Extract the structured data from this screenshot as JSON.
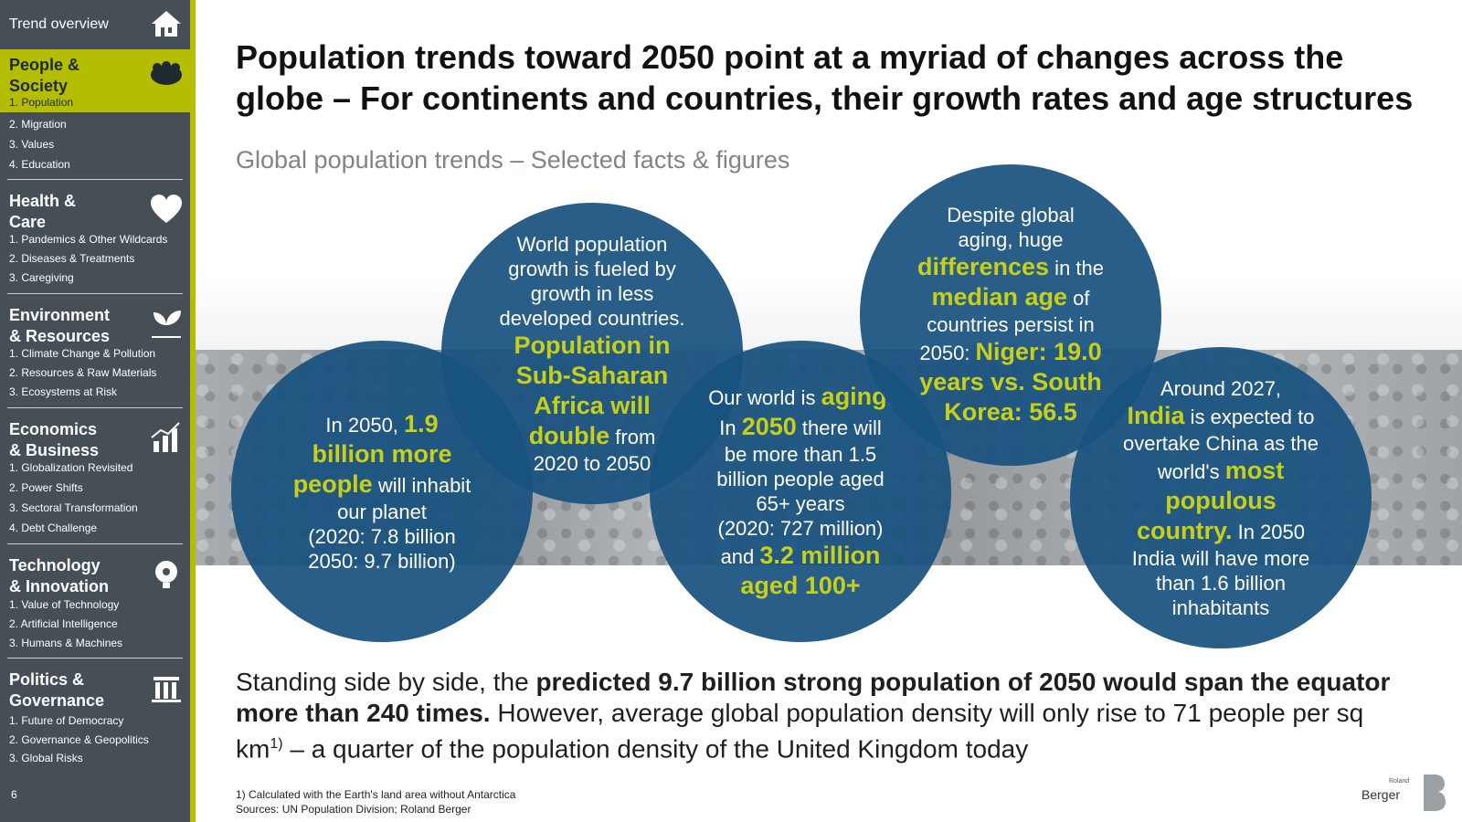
{
  "sidebar": {
    "trend_overview": "Trend overview",
    "page_number": "6",
    "sections": [
      {
        "title_l1": "People &",
        "title_l2": "Society",
        "items": [
          "1. Population",
          "2. Migration",
          "3. Values",
          "4. Education"
        ]
      },
      {
        "title_l1": "Health &",
        "title_l2": "Care",
        "items": [
          "1. Pandemics & Other Wildcards",
          "2. Diseases & Treatments",
          "3. Caregiving"
        ]
      },
      {
        "title_l1": "Environment",
        "title_l2": "& Resources",
        "items": [
          "1. Climate Change & Pollution",
          "2. Resources & Raw Materials",
          "3. Ecosystems at Risk"
        ]
      },
      {
        "title_l1": "Economics",
        "title_l2": "& Business",
        "items": [
          "1. Globalization Revisited",
          "2. Power Shifts",
          "3. Sectoral Transformation",
          "4. Debt Challenge"
        ]
      },
      {
        "title_l1": "Technology",
        "title_l2": "& Innovation",
        "items": [
          "1. Value of Technology",
          "2. Artificial Intelligence",
          "3. Humans & Machines"
        ]
      },
      {
        "title_l1": "Politics &",
        "title_l2": "Governance",
        "items": [
          "1. Future of Democracy",
          "2. Governance & Geopolitics",
          "3. Global Risks"
        ]
      }
    ]
  },
  "main": {
    "title_l1": "Population trends toward 2050 point at a myriad of changes across the",
    "title_l2": "globe – For continents and countries, their growth rates and age structures",
    "subtitle": "Global population trends – Selected facts & figures"
  },
  "circles": {
    "c1": {
      "t1": "In 2050, ",
      "h1": "1.9",
      "h2": "billion more",
      "h3": "people",
      "t2": " will inhabit",
      "t3": "our planet",
      "t4": "(2020: 7.8 billion",
      "t5": "2050: 9.7 billion)"
    },
    "c2": {
      "t1": "World population",
      "t2": "growth is fueled by",
      "t3": "growth in less",
      "t4": "developed countries.",
      "h1": "Population in",
      "h2": "Sub-Saharan",
      "h3": "Africa will",
      "h4": "double",
      "t5": " from",
      "t6": "2020 to 2050"
    },
    "c3": {
      "t1": "Our world is ",
      "h1": "aging",
      "t1b": ".",
      "t2": "In ",
      "h2": "2050",
      "t3": " there will",
      "t4": "be more than 1.5",
      "t5": "billion people aged",
      "t6": "65+ years",
      "t7": "(2020: 727 million)",
      "t8": "and ",
      "h3": "3.2 million",
      "h4": "aged 100+"
    },
    "c4": {
      "t1": "Despite global",
      "t2": "aging, huge",
      "h1": "differences",
      "t3": " in the",
      "h2": "median age",
      "t4": " of",
      "t5": "countries persist in",
      "t6": "2050: ",
      "h3": "Niger: 19.0",
      "h4": "years vs. South",
      "h5": "Korea: 56.5"
    },
    "c5": {
      "t1": "Around 2027,",
      "h1": "India",
      "t2": " is expected to",
      "t3": "overtake China as the",
      "t4": "world's ",
      "h2": "most",
      "h3": "populous",
      "h4": "country",
      "t5": ".",
      "t6": " In 2050",
      "t7": "India will have more",
      "t8": "than 1.6 billion",
      "t9": "inhabitants"
    }
  },
  "body": {
    "p1": "Standing side by side, the ",
    "b1": "predicted 9.7 billion strong population of 2050 would span the equator more than 240 times.",
    "p2": " However, average global population density will only rise to 71 people per sq km",
    "sup": "1)",
    "p3": " – a quarter of the population density of the United Kingdom today"
  },
  "footnotes": {
    "f1": "1) Calculated with the Earth's land area without Antarctica",
    "f2": "Sources: UN Population Division; Roland Berger"
  },
  "logo": {
    "small": "Roland",
    "name": "Berger"
  },
  "colors": {
    "sidebar": "#474f56",
    "accent": "#b5bd00",
    "circle": "#18527f",
    "highlight": "#c7cf19"
  }
}
